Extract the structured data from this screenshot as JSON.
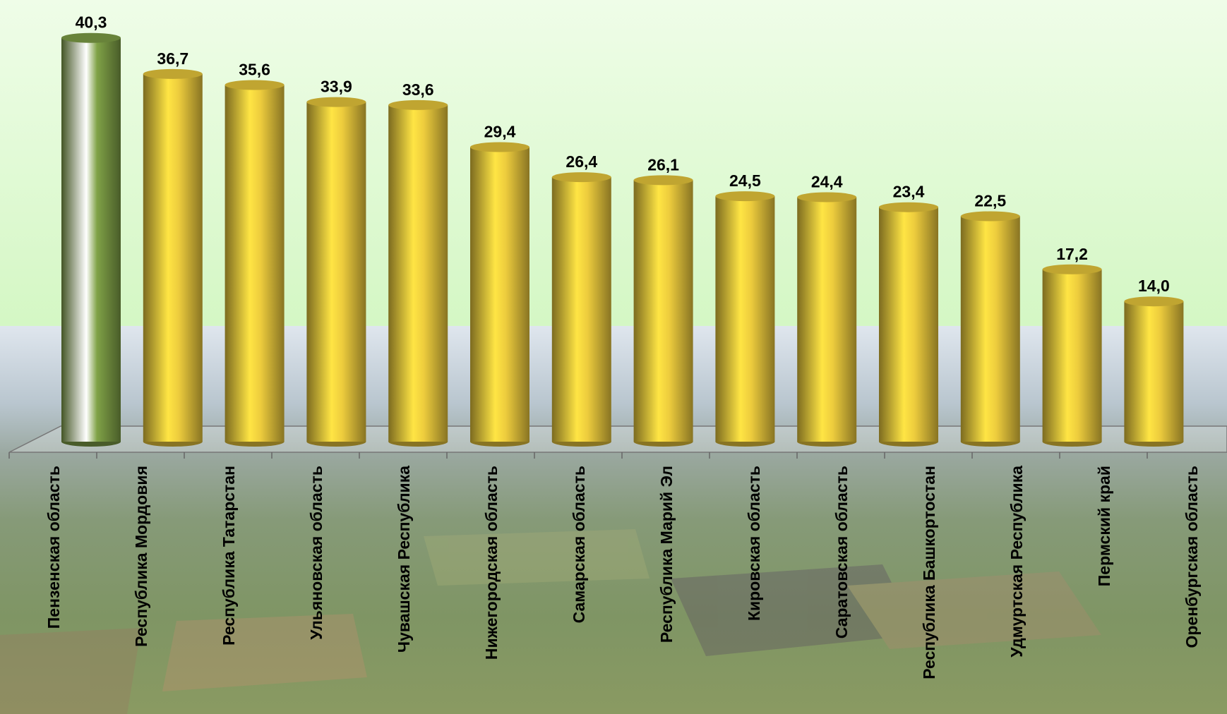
{
  "chart_data": {
    "type": "bar",
    "categories": [
      "Пензенская область",
      "Республика Мордовия",
      "Республика Татарстан",
      "Ульяновская область",
      "Чувашская Республика",
      "Нижегородская область",
      "Самарская область",
      "Республика Марий Эл",
      "Кировская область",
      "Саратовская область",
      "Республика Башкортостан",
      "Удмуртская Республика",
      "Пермский край",
      "Оренбургская область"
    ],
    "values": [
      40.3,
      36.7,
      35.6,
      33.9,
      33.6,
      29.4,
      26.4,
      26.1,
      24.5,
      24.4,
      23.4,
      22.5,
      17.2,
      14.0
    ],
    "value_labels": [
      "40,3",
      "36,7",
      "35,6",
      "33,9",
      "33,6",
      "29,4",
      "26,4",
      "26,1",
      "24,5",
      "24,4",
      "23,4",
      "22,5",
      "17,2",
      "14,0"
    ],
    "colors": [
      "#7a9a44",
      "#e2c23a",
      "#e2c23a",
      "#e2c23a",
      "#e2c23a",
      "#e2c23a",
      "#e2c23a",
      "#e2c23a",
      "#e2c23a",
      "#e2c23a",
      "#e2c23a",
      "#e2c23a",
      "#e2c23a",
      "#e2c23a"
    ]
  }
}
